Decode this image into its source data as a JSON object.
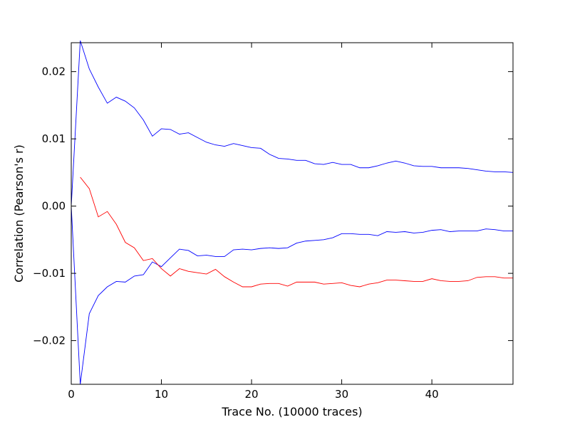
{
  "chart_data": {
    "type": "line",
    "title": "",
    "xlabel": "Trace No. (10000 traces)",
    "ylabel": "Correlation (Pearson's r)",
    "xlim": [
      0,
      49
    ],
    "ylim": [
      -0.0265,
      0.0243
    ],
    "x_ticks": [
      0,
      10,
      20,
      30,
      40
    ],
    "x_tick_labels": [
      "0",
      "10",
      "20",
      "30",
      "40"
    ],
    "y_ticks": [
      0.02,
      0.01,
      0.0,
      -0.01,
      -0.02
    ],
    "y_tick_labels": [
      "0.02",
      "0.01",
      "0.00",
      "−0.01",
      "−0.02"
    ],
    "grid": false,
    "legend": "none",
    "series": [
      {
        "color": "#0000ff",
        "x": [
          0,
          1,
          2,
          3,
          4,
          5,
          6,
          7,
          8,
          9,
          10,
          11,
          12,
          13,
          14,
          15,
          16,
          17,
          18,
          19,
          20,
          21,
          22,
          23,
          24,
          25,
          26,
          27,
          28,
          29,
          30,
          31,
          32,
          33,
          34,
          35,
          36,
          37,
          38,
          39,
          40,
          41,
          42,
          43,
          44,
          45,
          46,
          47,
          48,
          49
        ],
        "values": [
          0.0,
          0.0246,
          0.0204,
          0.0177,
          0.0153,
          0.0162,
          0.0156,
          0.0146,
          0.0128,
          0.0104,
          0.0115,
          0.0114,
          0.0107,
          0.0109,
          0.0102,
          0.0095,
          0.0091,
          0.0089,
          0.0093,
          0.009,
          0.0087,
          0.0086,
          0.0077,
          0.0071,
          0.007,
          0.0068,
          0.0068,
          0.0063,
          0.0062,
          0.0065,
          0.0062,
          0.0062,
          0.0057,
          0.0057,
          0.006,
          0.0064,
          0.0067,
          0.0064,
          0.006,
          0.0059,
          0.0059,
          0.0057,
          0.0057,
          0.0057,
          0.0056,
          0.0054,
          0.0052,
          0.0051,
          0.0051,
          0.005
        ]
      },
      {
        "color": "#0000ff",
        "x": [
          0,
          1,
          2,
          3,
          4,
          5,
          6,
          7,
          8,
          9,
          10,
          11,
          12,
          13,
          14,
          15,
          16,
          17,
          18,
          19,
          20,
          21,
          22,
          23,
          24,
          25,
          26,
          27,
          28,
          29,
          30,
          31,
          32,
          33,
          34,
          35,
          36,
          37,
          38,
          39,
          40,
          41,
          42,
          43,
          44,
          45,
          46,
          47,
          48,
          49
        ],
        "values": [
          0.0,
          -0.0265,
          -0.016,
          -0.0133,
          -0.012,
          -0.0112,
          -0.0113,
          -0.0104,
          -0.0102,
          -0.0083,
          -0.009,
          -0.0077,
          -0.0064,
          -0.0066,
          -0.0074,
          -0.0073,
          -0.0075,
          -0.0075,
          -0.0065,
          -0.0064,
          -0.0065,
          -0.0063,
          -0.0062,
          -0.0063,
          -0.0062,
          -0.0055,
          -0.0052,
          -0.0051,
          -0.005,
          -0.0047,
          -0.0041,
          -0.0041,
          -0.0042,
          -0.0042,
          -0.0044,
          -0.0038,
          -0.0039,
          -0.0038,
          -0.004,
          -0.0039,
          -0.0036,
          -0.0035,
          -0.0038,
          -0.0037,
          -0.0037,
          -0.0037,
          -0.0034,
          -0.0035,
          -0.0037,
          -0.0037
        ]
      },
      {
        "color": "#ff0000",
        "x": [
          1,
          2,
          3,
          4,
          5,
          6,
          7,
          8,
          9,
          10,
          11,
          12,
          13,
          14,
          15,
          16,
          17,
          18,
          19,
          20,
          21,
          22,
          23,
          24,
          25,
          26,
          27,
          28,
          29,
          30,
          31,
          32,
          33,
          34,
          35,
          36,
          37,
          38,
          39,
          40,
          41,
          42,
          43,
          44,
          45,
          46,
          47,
          48,
          49
        ],
        "values": [
          0.0043,
          0.0026,
          -0.0016,
          -0.0008,
          -0.0027,
          -0.0054,
          -0.0062,
          -0.0081,
          -0.0078,
          -0.0093,
          -0.0104,
          -0.0093,
          -0.0097,
          -0.0099,
          -0.0101,
          -0.0094,
          -0.0105,
          -0.0113,
          -0.012,
          -0.012,
          -0.0116,
          -0.0115,
          -0.0115,
          -0.0119,
          -0.0113,
          -0.0113,
          -0.0113,
          -0.0116,
          -0.0115,
          -0.0114,
          -0.0118,
          -0.012,
          -0.0116,
          -0.0114,
          -0.011,
          -0.011,
          -0.0111,
          -0.0112,
          -0.0112,
          -0.0108,
          -0.0111,
          -0.0112,
          -0.0112,
          -0.0111,
          -0.0106,
          -0.0105,
          -0.0105,
          -0.0107,
          -0.0107
        ]
      }
    ]
  }
}
